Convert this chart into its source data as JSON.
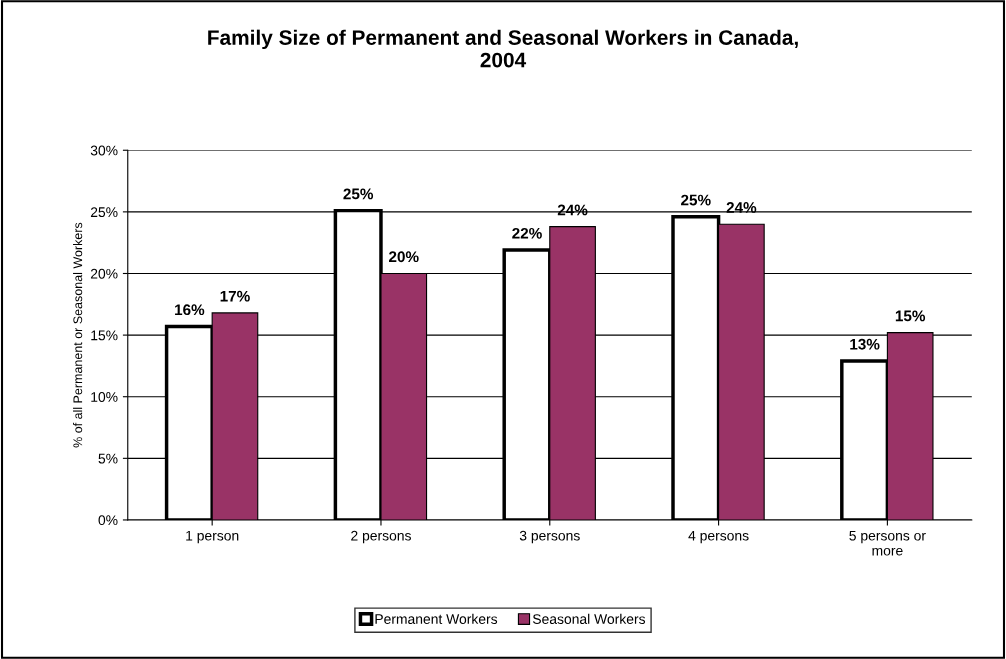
{
  "chart_data": {
    "type": "bar",
    "title": "Family Size of Permanent and Seasonal Workers in Canada,\n2004",
    "ylabel": "% of all Permanent or Seasonal Workers",
    "categories": [
      "1 person",
      "2 persons",
      "3 persons",
      "4 persons",
      "5 persons or\nmore"
    ],
    "series": [
      {
        "name": "Permanent Workers",
        "color": "#ffffff",
        "values": [
          15.7,
          25.1,
          21.9,
          24.6,
          12.9
        ],
        "value_labels": [
          "16%",
          "25%",
          "22%",
          "25%",
          "13%"
        ]
      },
      {
        "name": "Seasonal Workers",
        "color": "#993366",
        "values": [
          16.8,
          20.0,
          23.8,
          24.0,
          15.2
        ],
        "value_labels": [
          "17%",
          "20%",
          "24%",
          "24%",
          "15%"
        ]
      }
    ],
    "ylim": [
      0,
      30
    ],
    "yticks": [
      {
        "value": 0,
        "label": "0%"
      },
      {
        "value": 5,
        "label": "5%"
      },
      {
        "value": 10,
        "label": "10%"
      },
      {
        "value": 15,
        "label": "15%"
      },
      {
        "value": 20,
        "label": "20%"
      },
      {
        "value": 25,
        "label": "25%"
      },
      {
        "value": 30,
        "label": "30%"
      }
    ],
    "grid": "y",
    "legend": "bottom"
  }
}
